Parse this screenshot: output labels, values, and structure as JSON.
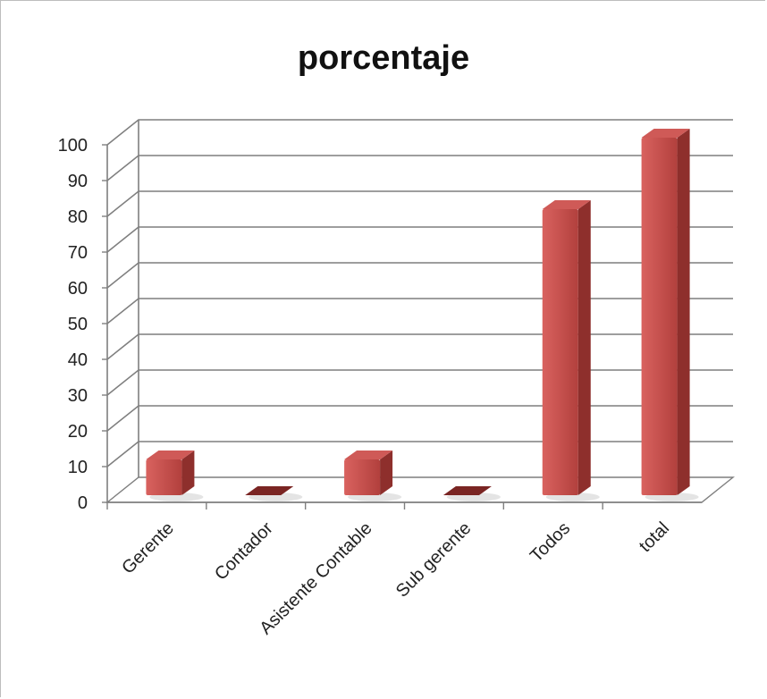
{
  "chart_data": {
    "type": "bar",
    "title": "porcentaje",
    "categories": [
      "Gerente",
      "Contador",
      "Asistente Contable",
      "Sub gerente",
      "Todos",
      "total"
    ],
    "values": [
      10,
      0,
      10,
      0,
      80,
      100
    ],
    "ylim": [
      0,
      100
    ],
    "yticks": [
      0,
      10,
      20,
      30,
      40,
      50,
      60,
      70,
      80,
      90,
      100
    ],
    "xlabel": "",
    "ylabel": "",
    "grid": true,
    "legend": "none",
    "bar_color": "#c0504d",
    "three_d": true
  }
}
